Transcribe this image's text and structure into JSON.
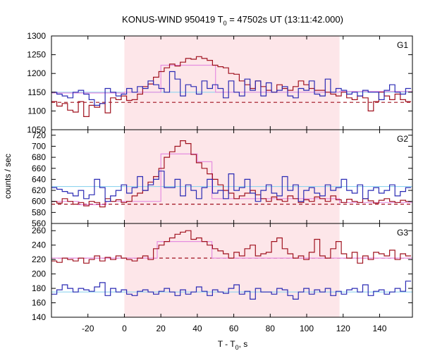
{
  "chart_data": {
    "type": "line",
    "title_main": "KONUS-WIND 950419 T",
    "title_sub": "0",
    "title_rest": " = 47502s UT (13:11:42.000)",
    "xlabel_main": "T - T",
    "xlabel_sub": "0",
    "xlabel_rest": ", s",
    "ylabel": "counts / sec",
    "xlim": [
      -40,
      158
    ],
    "x_ticks": [
      -20,
      0,
      20,
      40,
      60,
      80,
      100,
      120,
      140
    ],
    "highlight_interval": [
      0,
      118
    ],
    "colors": {
      "highlight": "#fde6e9",
      "red": "#a0121f",
      "blue": "#2a2ab4",
      "pink": "#e58ee0",
      "cyan": "#8fd4ef"
    },
    "bin_start": -40,
    "bin_width": 2.944,
    "panels": [
      {
        "label": "G1",
        "ylim": [
          1050,
          1300
        ],
        "y_ticks": [
          1050,
          1100,
          1150,
          1200,
          1250,
          1300
        ],
        "red": [
          1125,
          1113,
          1120,
          1102,
          1097,
          1125,
          1085,
          1115,
          1110,
          1120,
          1095,
          1135,
          1130,
          1140,
          1128,
          1130,
          1145,
          1165,
          1172,
          1190,
          1205,
          1215,
          1225,
          1220,
          1230,
          1240,
          1238,
          1245,
          1240,
          1235,
          1222,
          1218,
          1215,
          1200,
          1198,
          1180,
          1170,
          1160,
          1180,
          1165,
          1155,
          1150,
          1170,
          1160,
          1155,
          1165,
          1180,
          1170,
          1160,
          1155,
          1155,
          1150,
          1145,
          1140,
          1150,
          1135,
          1130,
          1140,
          1135,
          1100,
          1125,
          1150,
          1140,
          1130,
          1145,
          1130,
          1125
        ],
        "blue": [
          1150,
          1145,
          1140,
          1135,
          1150,
          1155,
          1145,
          1130,
          1115,
          1120,
          1160,
          1150,
          1140,
          1145,
          1160,
          1150,
          1165,
          1160,
          1180,
          1170,
          1160,
          1150,
          1205,
          1185,
          1140,
          1170,
          1165,
          1145,
          1180,
          1160,
          1170,
          1160,
          1135,
          1180,
          1150,
          1140,
          1185,
          1155,
          1180,
          1140,
          1175,
          1150,
          1155,
          1165,
          1140,
          1135,
          1160,
          1155,
          1180,
          1145,
          1140,
          1185,
          1150,
          1160,
          1155,
          1145,
          1150,
          1140,
          1155,
          1150,
          1150,
          1130,
          1155,
          1170,
          1150,
          1145,
          1160
        ],
        "red_bg": 1123,
        "blue_bg": 1150,
        "pink_steps": [
          {
            "x0": -40,
            "x1": 0,
            "y": 1148
          },
          {
            "x0": 0,
            "x1": 20,
            "y": 1150
          },
          {
            "x0": 20,
            "x1": 50,
            "y": 1222
          },
          {
            "x0": 50,
            "x1": 118,
            "y": 1150
          },
          {
            "x0": 118,
            "x1": 158,
            "y": 1152
          }
        ]
      },
      {
        "label": "G2",
        "ylim": [
          560,
          730
        ],
        "y_ticks": [
          560,
          580,
          600,
          620,
          640,
          660,
          680,
          700,
          720
        ],
        "red": [
          600,
          597,
          605,
          600,
          595,
          598,
          592,
          600,
          598,
          590,
          605,
          600,
          603,
          598,
          600,
          610,
          615,
          620,
          635,
          645,
          660,
          680,
          690,
          700,
          710,
          705,
          685,
          670,
          660,
          650,
          640,
          630,
          620,
          615,
          605,
          610,
          615,
          620,
          612,
          605,
          600,
          608,
          603,
          600,
          610,
          605,
          598,
          603,
          600,
          608,
          605,
          600,
          610,
          603,
          598,
          604,
          600,
          598,
          605,
          601,
          597,
          602,
          605,
          600,
          598,
          602,
          600
        ],
        "blue": [
          625,
          622,
          618,
          615,
          610,
          620,
          605,
          612,
          640,
          625,
          600,
          610,
          620,
          630,
          615,
          625,
          645,
          620,
          630,
          640,
          655,
          625,
          625,
          640,
          610,
          630,
          620,
          605,
          625,
          640,
          615,
          620,
          605,
          650,
          620,
          625,
          640,
          615,
          600,
          620,
          630,
          615,
          610,
          645,
          620,
          630,
          600,
          620,
          625,
          615,
          610,
          630,
          620,
          625,
          640,
          620,
          615,
          630,
          605,
          620,
          625,
          615,
          620,
          630,
          610,
          618,
          625
        ],
        "red_bg": 595,
        "blue_bg": 627,
        "pink_steps": [
          {
            "x0": -40,
            "x1": -25,
            "y": 600
          },
          {
            "x0": -25,
            "x1": -10,
            "y": 594
          },
          {
            "x0": -10,
            "x1": 0,
            "y": 600
          },
          {
            "x0": 0,
            "x1": 20,
            "y": 600
          },
          {
            "x0": 20,
            "x1": 40,
            "y": 686
          },
          {
            "x0": 40,
            "x1": 48,
            "y": 672
          },
          {
            "x0": 48,
            "x1": 118,
            "y": 605
          },
          {
            "x0": 118,
            "x1": 158,
            "y": 598
          }
        ]
      },
      {
        "label": "G3",
        "ylim": [
          140,
          270
        ],
        "y_ticks": [
          140,
          160,
          180,
          200,
          220,
          240,
          260
        ],
        "red": [
          218,
          216,
          222,
          220,
          218,
          222,
          215,
          220,
          225,
          218,
          223,
          220,
          225,
          222,
          220,
          218,
          222,
          225,
          220,
          235,
          240,
          245,
          250,
          255,
          258,
          260,
          248,
          250,
          245,
          240,
          235,
          232,
          228,
          222,
          230,
          225,
          235,
          240,
          225,
          228,
          230,
          245,
          250,
          235,
          228,
          222,
          225,
          220,
          230,
          248,
          225,
          222,
          235,
          245,
          228,
          222,
          230,
          215,
          225,
          220,
          230,
          228,
          225,
          233,
          220,
          228,
          225
        ],
        "blue": [
          172,
          178,
          185,
          180,
          175,
          180,
          178,
          176,
          182,
          188,
          170,
          180,
          175,
          178,
          172,
          170,
          176,
          178,
          175,
          172,
          176,
          180,
          175,
          170,
          178,
          172,
          175,
          182,
          176,
          170,
          178,
          175,
          173,
          180,
          185,
          172,
          176,
          165,
          180,
          175,
          175,
          172,
          180,
          178,
          170,
          165,
          175,
          180,
          172,
          178,
          175,
          180,
          170,
          176,
          172,
          178,
          180,
          175,
          185,
          170,
          176,
          178,
          172,
          175,
          180,
          176,
          190
        ],
        "red_bg": 222,
        "blue_bg": 175,
        "pink_steps": [
          {
            "x0": -40,
            "x1": 0,
            "y": 222
          },
          {
            "x0": 0,
            "x1": 18,
            "y": 222
          },
          {
            "x0": 18,
            "x1": 48,
            "y": 245
          },
          {
            "x0": 48,
            "x1": 158,
            "y": 222
          }
        ]
      }
    ]
  }
}
